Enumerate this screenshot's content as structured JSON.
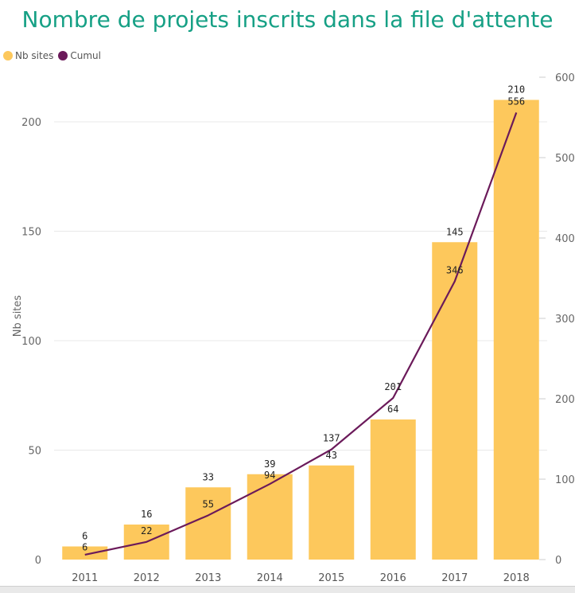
{
  "title": "Nombre de projets inscrits dans la file d'attente",
  "legend": [
    {
      "name": "Nb sites",
      "color": "#fdc85c"
    },
    {
      "name": "Cumul",
      "color": "#6b1a5a"
    }
  ],
  "chart_data": {
    "type": "bar",
    "title": "Nombre de projets inscrits dans la file d'attente",
    "categories": [
      "2011",
      "2012",
      "2013",
      "2014",
      "2015",
      "2016",
      "2017",
      "2018"
    ],
    "series": [
      {
        "name": "Nb sites",
        "type": "bar",
        "axis": "left",
        "color": "#fdc85c",
        "values": [
          6,
          16,
          33,
          39,
          43,
          64,
          145,
          210
        ]
      },
      {
        "name": "Cumul",
        "type": "line",
        "axis": "right",
        "color": "#6b1a5a",
        "values": [
          6,
          22,
          55,
          94,
          137,
          201,
          346,
          556
        ]
      }
    ],
    "ylabel": "Nb sites",
    "y_left_ticks": [
      0,
      50,
      100,
      150,
      200
    ],
    "y_left_range": [
      0,
      222
    ],
    "y_right_ticks": [
      0,
      100,
      200,
      300,
      400,
      500,
      600
    ],
    "y_right_range": [
      0,
      600
    ],
    "grid": true,
    "legend_position": "top-left"
  }
}
